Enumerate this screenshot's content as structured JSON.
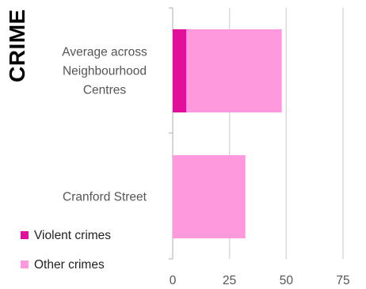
{
  "page": {
    "title": "CRIME"
  },
  "chart_data": {
    "type": "bar",
    "orientation": "horizontal",
    "stacked": true,
    "categories": [
      "Average across Neighbourhood Centres",
      "Cranford Street"
    ],
    "category_lines": [
      [
        "Average across",
        "Neighbourhood",
        "Centres"
      ],
      [
        "Cranford Street"
      ]
    ],
    "series": [
      {
        "name": "Violent crimes",
        "values": [
          6,
          0
        ],
        "color": "#e0109a"
      },
      {
        "name": "Other crimes",
        "values": [
          42,
          32
        ],
        "color": "#fd99dc"
      }
    ],
    "xlim": [
      0,
      75
    ],
    "x_ticks": [
      0,
      25,
      50,
      75
    ],
    "grid": true,
    "legend_position": "bottom-left",
    "xlabel": "",
    "ylabel": ""
  }
}
